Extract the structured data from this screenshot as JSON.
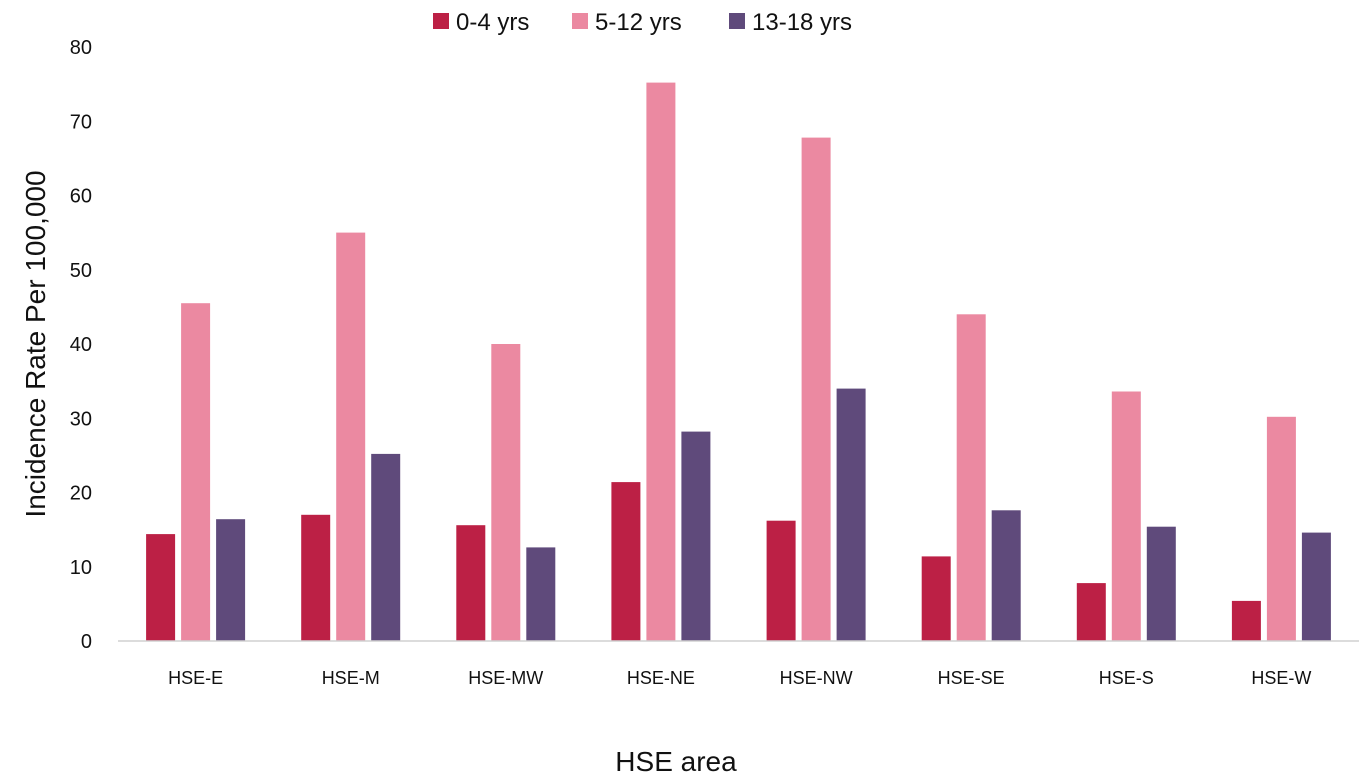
{
  "chart_data": {
    "type": "bar",
    "categories": [
      "HSE-E",
      "HSE-M",
      "HSE-MW",
      "HSE-NE",
      "HSE-NW",
      "HSE-SE",
      "HSE-S",
      "HSE-W"
    ],
    "series": [
      {
        "name": "0-4 yrs",
        "color": "#BC2045",
        "values": [
          14.4,
          17.0,
          15.6,
          21.4,
          16.2,
          11.4,
          7.8,
          5.4
        ]
      },
      {
        "name": "5-12 yrs",
        "color": "#EB89A1",
        "values": [
          45.5,
          55.0,
          40.0,
          75.2,
          67.8,
          44.0,
          33.6,
          30.2
        ]
      },
      {
        "name": "13-18 yrs",
        "color": "#5F4A7B",
        "values": [
          16.4,
          25.2,
          12.6,
          28.2,
          34.0,
          17.6,
          15.4,
          14.6
        ]
      }
    ],
    "xlabel": "HSE area",
    "ylabel": "Incidence Rate Per 100,000",
    "ylim": [
      0,
      80
    ],
    "yticks": [
      0,
      10,
      20,
      30,
      40,
      50,
      60,
      70,
      80
    ],
    "grid": false,
    "legend_position": "top-center"
  }
}
